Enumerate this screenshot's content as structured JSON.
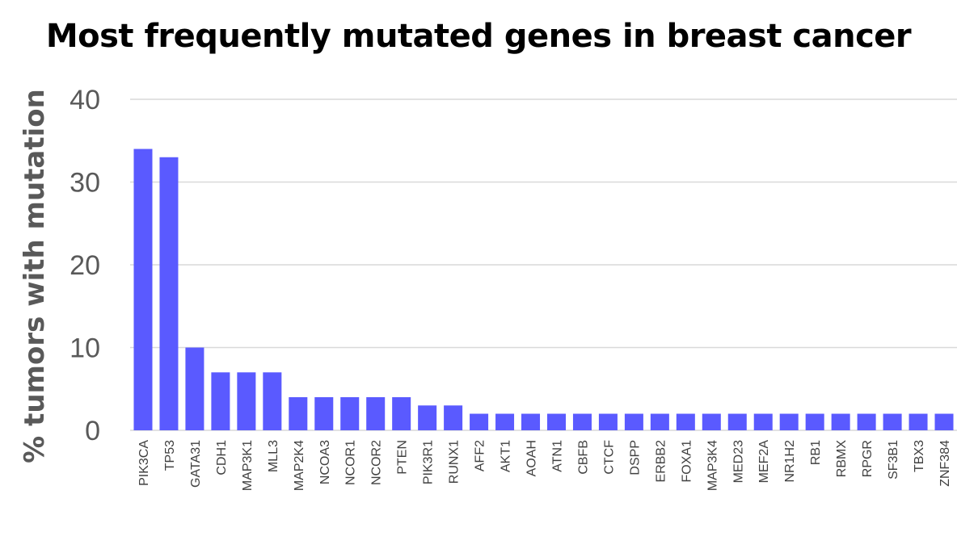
{
  "chart_data": {
    "type": "bar",
    "title": "Most frequently mutated genes in breast cancer",
    "xlabel": "",
    "ylabel": "% tumors with mutation",
    "ylim": [
      0,
      40
    ],
    "yticks": [
      0,
      10,
      20,
      30,
      40
    ],
    "grid": true,
    "bar_color": "#5a5aff",
    "categories": [
      "PIK3CA",
      "TP53",
      "GATA31",
      "CDH1",
      "MAP3K1",
      "MLL3",
      "MAP2K4",
      "NCOA3",
      "NCOR1",
      "NCOR2",
      "PTEN",
      "PIK3R1",
      "RUNX1",
      "AFF2",
      "AKT1",
      "AOAH",
      "ATN1",
      "CBFB",
      "CTCF",
      "DSPP",
      "ERBB2",
      "FOXA1",
      "MAP3K4",
      "MED23",
      "MEF2A",
      "NR1H2",
      "RB1",
      "RBMX",
      "RPGR",
      "SF3B1",
      "TBX3",
      "ZNF384"
    ],
    "values": [
      34,
      33,
      10,
      7,
      7,
      7,
      4,
      4,
      4,
      4,
      4,
      3,
      3,
      2,
      2,
      2,
      2,
      2,
      2,
      2,
      2,
      2,
      2,
      2,
      2,
      2,
      2,
      2,
      2,
      2,
      2,
      2
    ]
  }
}
